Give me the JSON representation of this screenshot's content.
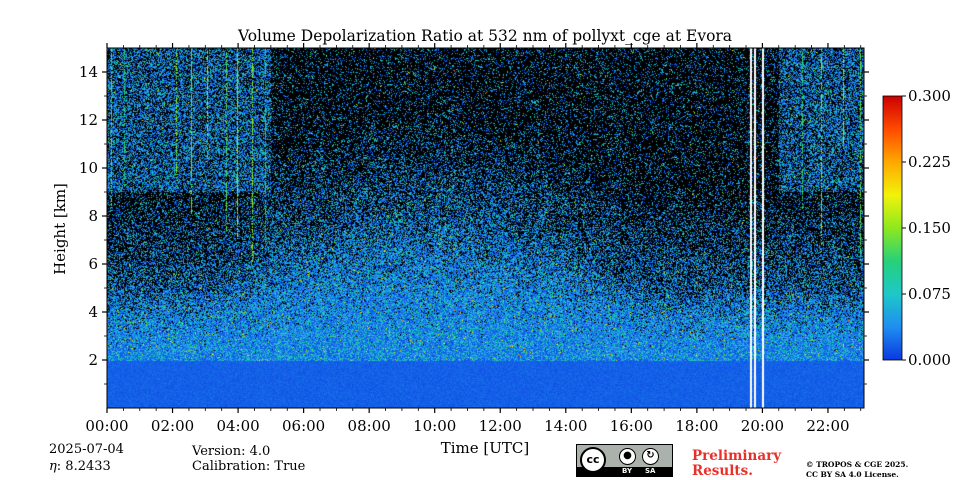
{
  "chart_data": {
    "type": "heatmap",
    "title": "Volume Depolarization Ratio at 532 nm of pollyxt_cge at Evora",
    "xlabel": "Time [UTC]",
    "ylabel": "Height [km]",
    "x_tick_labels": [
      "00:00",
      "02:00",
      "04:00",
      "06:00",
      "08:00",
      "10:00",
      "12:00",
      "14:00",
      "16:00",
      "18:00",
      "20:00",
      "22:00"
    ],
    "x_ticks_hours": [
      0,
      2,
      4,
      6,
      8,
      10,
      12,
      14,
      16,
      18,
      20,
      22
    ],
    "xlim_hours": [
      0,
      23.1
    ],
    "y_ticks": [
      2,
      4,
      6,
      8,
      10,
      12,
      14
    ],
    "ylim": [
      0,
      15
    ],
    "colorbar": {
      "ticks": [
        0.0,
        0.075,
        0.15,
        0.225,
        0.3
      ],
      "tick_labels": [
        "0.000",
        "0.075",
        "0.150",
        "0.225",
        "0.300"
      ],
      "range": [
        0,
        0.3
      ],
      "colors": [
        "#0a39e0",
        "#1f8ef0",
        "#1ec8c8",
        "#27d07a",
        "#8ee81e",
        "#f2f20a",
        "#ffa800",
        "#ff4a00",
        "#cc0000"
      ]
    },
    "data_gaps_hours": [
      19.62,
      19.75,
      20.0
    ]
  },
  "footer": {
    "date": "2025-07-04",
    "eta": ": 8.2433",
    "eta_symbol": "η",
    "version": "Version: 4.0",
    "calibration": "Calibration: True",
    "preliminary_line1": "Preliminary",
    "preliminary_line2": "Results.",
    "license_line1": "© TROPOS & CGE 2025.",
    "license_line2": "CC BY SA 4.0 License.",
    "cc_badge": {
      "cc": "cc",
      "by": "BY",
      "sa": "SA"
    }
  }
}
